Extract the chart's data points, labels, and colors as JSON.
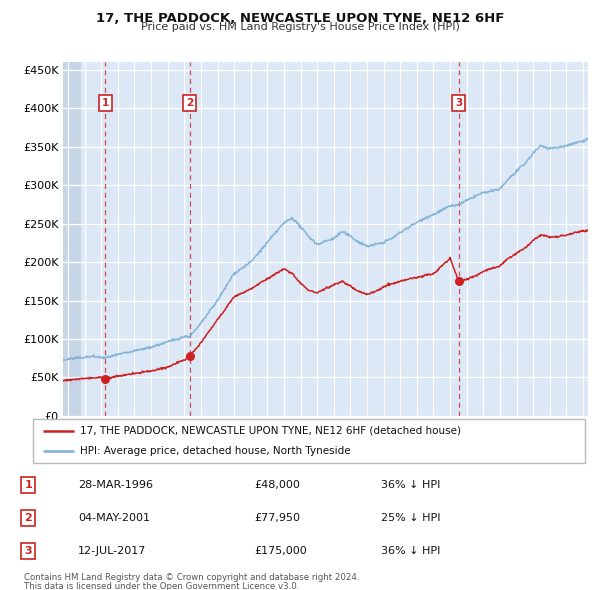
{
  "title": "17, THE PADDOCK, NEWCASTLE UPON TYNE, NE12 6HF",
  "subtitle": "Price paid vs. HM Land Registry's House Price Index (HPI)",
  "legend_line1": "17, THE PADDOCK, NEWCASTLE UPON TYNE, NE12 6HF (detached house)",
  "legend_line2": "HPI: Average price, detached house, North Tyneside",
  "footnote1": "Contains HM Land Registry data © Crown copyright and database right 2024.",
  "footnote2": "This data is licensed under the Open Government Licence v3.0.",
  "sales": [
    {
      "label": "1",
      "date": "28-MAR-1996",
      "price": 48000,
      "note": "36% ↓ HPI",
      "year": 1996.24
    },
    {
      "label": "2",
      "date": "04-MAY-2001",
      "price": 77950,
      "note": "25% ↓ HPI",
      "year": 2001.34
    },
    {
      "label": "3",
      "date": "12-JUL-2017",
      "price": 175000,
      "note": "36% ↓ HPI",
      "year": 2017.53
    }
  ],
  "hpi_color": "#7bafd4",
  "price_color": "#cc2222",
  "marker_color": "#cc2222",
  "vline_color": "#cc3333",
  "bg_color": "#dce8f5",
  "hatch_color": "#c5d5e5",
  "xlim_left": 1993.7,
  "xlim_right": 2025.3,
  "ylim_bottom": 0,
  "ylim_top": 460000,
  "yticks": [
    0,
    50000,
    100000,
    150000,
    200000,
    250000,
    300000,
    350000,
    400000,
    450000
  ],
  "ytick_labels": [
    "£0",
    "£50K",
    "£100K",
    "£150K",
    "£200K",
    "£250K",
    "£300K",
    "£350K",
    "£400K",
    "£450K"
  ],
  "xtick_start": 1994,
  "xtick_end": 2025,
  "hpi_keypoints": [
    [
      1993.7,
      72000
    ],
    [
      1994.5,
      75000
    ],
    [
      1995.5,
      78000
    ],
    [
      1996.24,
      76000
    ],
    [
      1997.0,
      80000
    ],
    [
      1998.0,
      85000
    ],
    [
      1999.0,
      90000
    ],
    [
      2000.0,
      97000
    ],
    [
      2001.0,
      103000
    ],
    [
      2001.34,
      104000
    ],
    [
      2002.0,
      120000
    ],
    [
      2003.0,
      150000
    ],
    [
      2004.0,
      185000
    ],
    [
      2005.0,
      200000
    ],
    [
      2006.0,
      225000
    ],
    [
      2007.0,
      250000
    ],
    [
      2007.5,
      257000
    ],
    [
      2008.0,
      245000
    ],
    [
      2008.5,
      232000
    ],
    [
      2009.0,
      222000
    ],
    [
      2010.0,
      230000
    ],
    [
      2010.5,
      238000
    ],
    [
      2011.0,
      232000
    ],
    [
      2011.5,
      225000
    ],
    [
      2012.0,
      220000
    ],
    [
      2012.5,
      222000
    ],
    [
      2013.0,
      225000
    ],
    [
      2013.5,
      230000
    ],
    [
      2014.0,
      238000
    ],
    [
      2014.5,
      245000
    ],
    [
      2015.0,
      252000
    ],
    [
      2015.5,
      258000
    ],
    [
      2016.0,
      262000
    ],
    [
      2016.5,
      268000
    ],
    [
      2017.0,
      273000
    ],
    [
      2017.53,
      275000
    ],
    [
      2018.0,
      280000
    ],
    [
      2018.5,
      285000
    ],
    [
      2019.0,
      290000
    ],
    [
      2019.5,
      292000
    ],
    [
      2020.0,
      295000
    ],
    [
      2020.5,
      308000
    ],
    [
      2021.0,
      318000
    ],
    [
      2021.5,
      328000
    ],
    [
      2022.0,
      342000
    ],
    [
      2022.5,
      352000
    ],
    [
      2023.0,
      348000
    ],
    [
      2023.5,
      350000
    ],
    [
      2024.0,
      352000
    ],
    [
      2024.5,
      355000
    ],
    [
      2025.0,
      358000
    ],
    [
      2025.3,
      360000
    ]
  ],
  "red_keypoints": [
    [
      1993.7,
      47000
    ],
    [
      1994.0,
      47500
    ],
    [
      1994.5,
      48500
    ],
    [
      1995.0,
      49500
    ],
    [
      1995.5,
      50000
    ],
    [
      1996.0,
      50500
    ],
    [
      1996.24,
      48000
    ],
    [
      1997.0,
      52000
    ],
    [
      1998.0,
      55000
    ],
    [
      1999.0,
      58000
    ],
    [
      2000.0,
      63000
    ],
    [
      2001.0,
      72000
    ],
    [
      2001.34,
      77950
    ],
    [
      2002.0,
      95000
    ],
    [
      2003.0,
      125000
    ],
    [
      2004.0,
      155000
    ],
    [
      2005.0,
      165000
    ],
    [
      2006.0,
      178000
    ],
    [
      2007.0,
      191000
    ],
    [
      2007.5,
      185000
    ],
    [
      2008.0,
      172000
    ],
    [
      2008.5,
      163000
    ],
    [
      2009.0,
      160000
    ],
    [
      2009.5,
      165000
    ],
    [
      2010.0,
      170000
    ],
    [
      2010.5,
      175000
    ],
    [
      2011.0,
      168000
    ],
    [
      2011.5,
      162000
    ],
    [
      2012.0,
      158000
    ],
    [
      2012.5,
      162000
    ],
    [
      2013.0,
      168000
    ],
    [
      2013.5,
      172000
    ],
    [
      2014.0,
      175000
    ],
    [
      2014.5,
      178000
    ],
    [
      2015.0,
      180000
    ],
    [
      2015.5,
      183000
    ],
    [
      2016.0,
      185000
    ],
    [
      2016.5,
      195000
    ],
    [
      2017.0,
      205000
    ],
    [
      2017.53,
      175000
    ],
    [
      2018.0,
      178000
    ],
    [
      2018.5,
      182000
    ],
    [
      2019.0,
      188000
    ],
    [
      2019.5,
      192000
    ],
    [
      2020.0,
      195000
    ],
    [
      2020.5,
      205000
    ],
    [
      2021.0,
      212000
    ],
    [
      2021.5,
      218000
    ],
    [
      2022.0,
      228000
    ],
    [
      2022.5,
      235000
    ],
    [
      2023.0,
      232000
    ],
    [
      2023.5,
      233000
    ],
    [
      2024.0,
      235000
    ],
    [
      2024.5,
      238000
    ],
    [
      2025.0,
      240000
    ],
    [
      2025.3,
      242000
    ]
  ]
}
